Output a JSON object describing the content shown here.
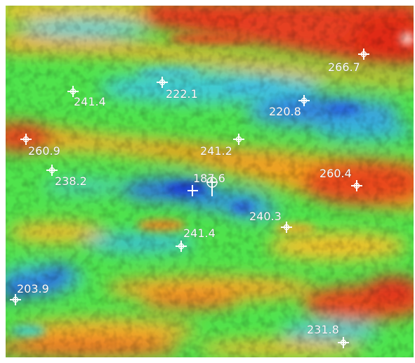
{
  "image": {
    "description_colors": {
      "hot": "#e8341c",
      "warm": "#f2a21e",
      "mid": "#3fe84a",
      "cool": "#3ac7d8",
      "cold": "#1c3ed0"
    }
  },
  "markers": [
    {
      "id": "m1",
      "label": "266.7"
    },
    {
      "id": "m2",
      "label": "241.4"
    },
    {
      "id": "m3",
      "label": "222.1"
    },
    {
      "id": "m4",
      "label": "220.8"
    },
    {
      "id": "m5",
      "label": "260.9"
    },
    {
      "id": "m6",
      "label": "241.2"
    },
    {
      "id": "m7",
      "label": "238.2"
    },
    {
      "id": "m8",
      "label": "187.6"
    },
    {
      "id": "m9",
      "label": "260.4"
    },
    {
      "id": "m10",
      "label": "240.3"
    },
    {
      "id": "m11",
      "label": "241.4"
    },
    {
      "id": "m12",
      "label": "203.9"
    },
    {
      "id": "m13",
      "label": "231.8"
    }
  ]
}
